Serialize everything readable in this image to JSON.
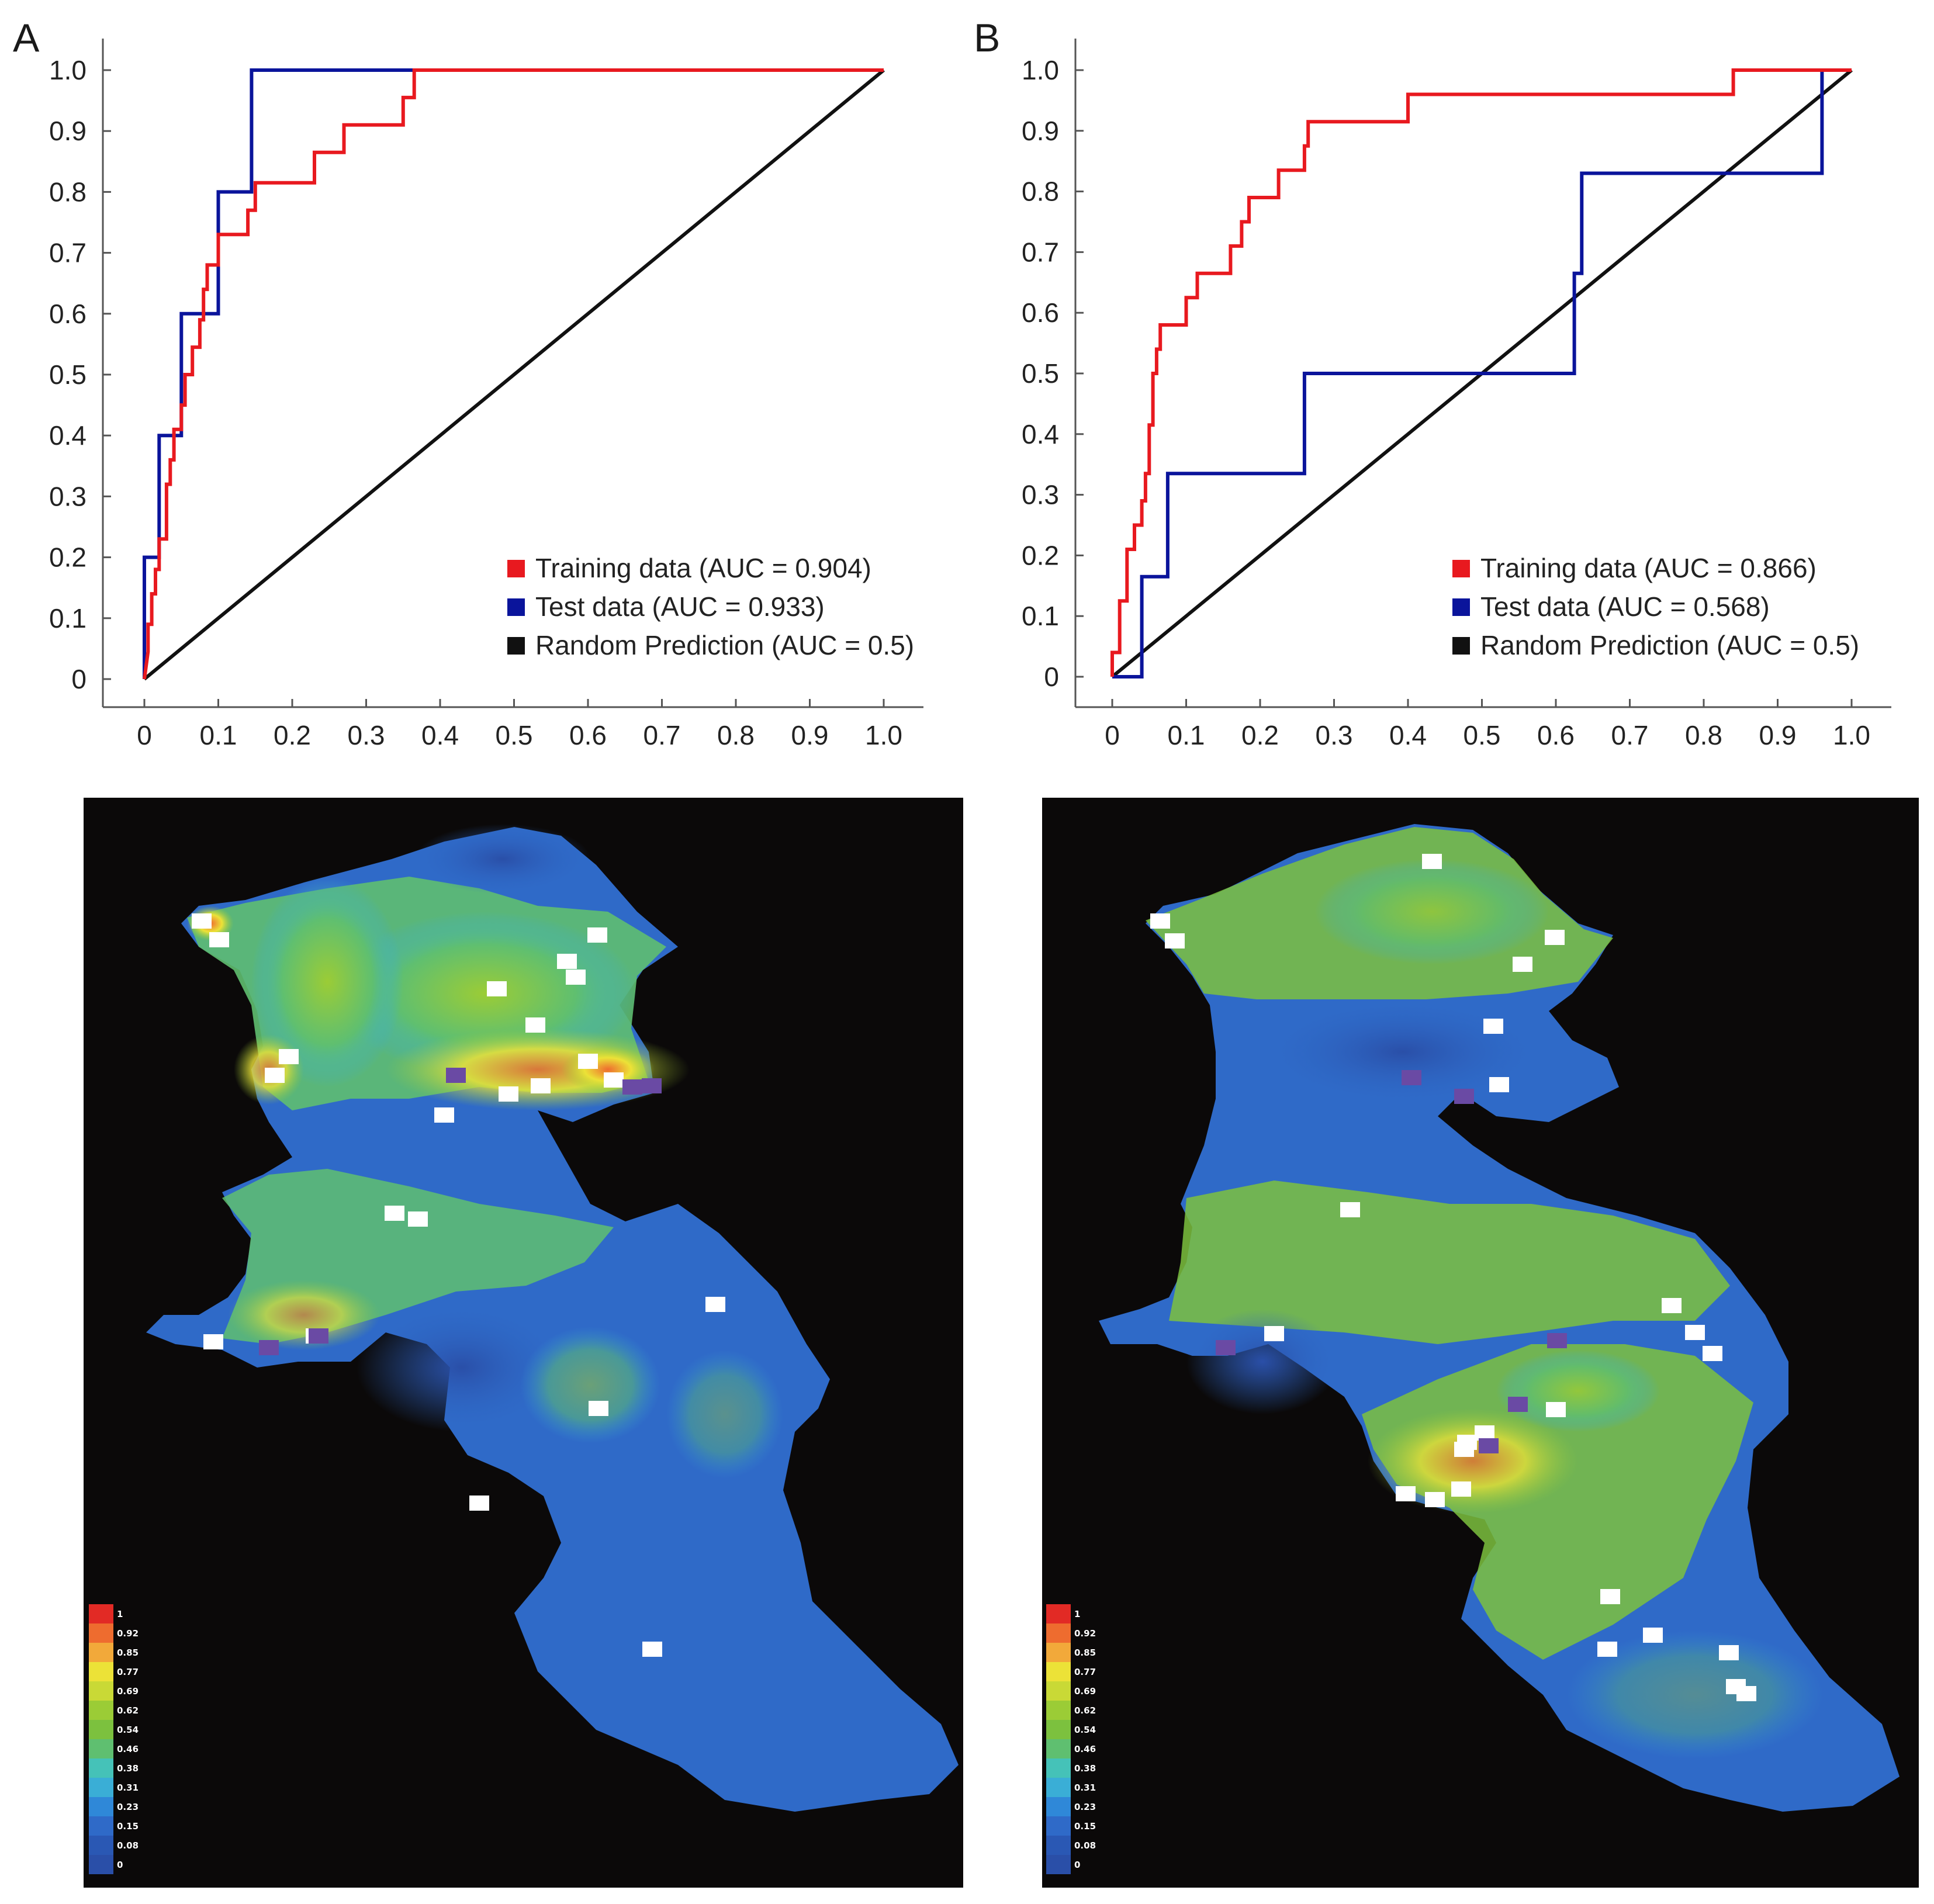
{
  "figure": {
    "map_colorscale": [
      "#2a4fa8",
      "#2f6ac8",
      "#2f88d8",
      "#3aaed6",
      "#45c2b8",
      "#5fbf70",
      "#7cc13e",
      "#9bcc36",
      "#c9d936",
      "#ece237",
      "#f2a93a",
      "#ee6c2f",
      "#e22a25"
    ],
    "map_background": "#0b0909"
  },
  "chart_data": [
    {
      "panel_label": "A",
      "type": "line",
      "title": "",
      "xlabel": "",
      "ylabel": "",
      "xlim": [
        0,
        1
      ],
      "ylim": [
        0,
        1
      ],
      "x_ticks": [
        "0",
        "0.1",
        "0.2",
        "0.3",
        "0.4",
        "0.5",
        "0.6",
        "0.7",
        "0.8",
        "0.9",
        "1.0"
      ],
      "y_ticks": [
        "0",
        "0.1",
        "0.2",
        "0.3",
        "0.4",
        "0.5",
        "0.6",
        "0.7",
        "0.8",
        "0.9",
        "1.0"
      ],
      "legend_position": "bottom-right",
      "series": [
        {
          "name": "Training data (AUC = 0.904)",
          "color": "#e8191f",
          "points": [
            [
              0,
              0
            ],
            [
              0.005,
              0.045
            ],
            [
              0.005,
              0.09
            ],
            [
              0.01,
              0.09
            ],
            [
              0.01,
              0.14
            ],
            [
              0.015,
              0.14
            ],
            [
              0.015,
              0.18
            ],
            [
              0.02,
              0.18
            ],
            [
              0.02,
              0.23
            ],
            [
              0.03,
              0.23
            ],
            [
              0.03,
              0.27
            ],
            [
              0.03,
              0.32
            ],
            [
              0.035,
              0.32
            ],
            [
              0.035,
              0.36
            ],
            [
              0.04,
              0.36
            ],
            [
              0.04,
              0.41
            ],
            [
              0.05,
              0.41
            ],
            [
              0.05,
              0.45
            ],
            [
              0.055,
              0.45
            ],
            [
              0.055,
              0.5
            ],
            [
              0.065,
              0.5
            ],
            [
              0.065,
              0.545
            ],
            [
              0.075,
              0.545
            ],
            [
              0.075,
              0.59
            ],
            [
              0.08,
              0.59
            ],
            [
              0.08,
              0.64
            ],
            [
              0.085,
              0.64
            ],
            [
              0.085,
              0.68
            ],
            [
              0.1,
              0.68
            ],
            [
              0.1,
              0.73
            ],
            [
              0.14,
              0.73
            ],
            [
              0.14,
              0.77
            ],
            [
              0.15,
              0.77
            ],
            [
              0.15,
              0.815
            ],
            [
              0.23,
              0.815
            ],
            [
              0.23,
              0.865
            ],
            [
              0.27,
              0.865
            ],
            [
              0.27,
              0.91
            ],
            [
              0.35,
              0.91
            ],
            [
              0.35,
              0.955
            ],
            [
              0.365,
              0.955
            ],
            [
              0.365,
              1.0
            ],
            [
              1.0,
              1.0
            ]
          ]
        },
        {
          "name": "Test data (AUC = 0.933)",
          "color": "#0a149b",
          "points": [
            [
              0,
              0
            ],
            [
              0,
              0.2
            ],
            [
              0.02,
              0.2
            ],
            [
              0.02,
              0.4
            ],
            [
              0.05,
              0.4
            ],
            [
              0.05,
              0.6
            ],
            [
              0.1,
              0.6
            ],
            [
              0.1,
              0.8
            ],
            [
              0.145,
              0.8
            ],
            [
              0.145,
              1.0
            ],
            [
              1.0,
              1.0
            ]
          ]
        },
        {
          "name": "Random Prediction (AUC = 0.5)",
          "color": "#111111",
          "points": [
            [
              0,
              0
            ],
            [
              1,
              1
            ]
          ]
        }
      ]
    },
    {
      "panel_label": "B",
      "type": "line",
      "title": "",
      "xlabel": "",
      "ylabel": "",
      "xlim": [
        0,
        1
      ],
      "ylim": [
        0,
        1
      ],
      "x_ticks": [
        "0",
        "0.1",
        "0.2",
        "0.3",
        "0.4",
        "0.5",
        "0.6",
        "0.7",
        "0.8",
        "0.9",
        "1.0"
      ],
      "y_ticks": [
        "0",
        "0.1",
        "0.2",
        "0.3",
        "0.4",
        "0.5",
        "0.6",
        "0.7",
        "0.8",
        "0.9",
        "1.0"
      ],
      "legend_position": "bottom-right",
      "series": [
        {
          "name": "Training data (AUC = 0.866)",
          "color": "#e8191f",
          "points": [
            [
              0,
              0
            ],
            [
              0,
              0.04
            ],
            [
              0.01,
              0.04
            ],
            [
              0.01,
              0.08
            ],
            [
              0.01,
              0.125
            ],
            [
              0.02,
              0.125
            ],
            [
              0.02,
              0.165
            ],
            [
              0.02,
              0.21
            ],
            [
              0.03,
              0.21
            ],
            [
              0.03,
              0.25
            ],
            [
              0.04,
              0.25
            ],
            [
              0.04,
              0.29
            ],
            [
              0.045,
              0.29
            ],
            [
              0.045,
              0.335
            ],
            [
              0.05,
              0.335
            ],
            [
              0.05,
              0.375
            ],
            [
              0.05,
              0.415
            ],
            [
              0.055,
              0.415
            ],
            [
              0.055,
              0.46
            ],
            [
              0.055,
              0.5
            ],
            [
              0.06,
              0.5
            ],
            [
              0.06,
              0.54
            ],
            [
              0.065,
              0.54
            ],
            [
              0.065,
              0.58
            ],
            [
              0.1,
              0.58
            ],
            [
              0.1,
              0.625
            ],
            [
              0.115,
              0.625
            ],
            [
              0.115,
              0.665
            ],
            [
              0.16,
              0.665
            ],
            [
              0.16,
              0.71
            ],
            [
              0.175,
              0.71
            ],
            [
              0.175,
              0.75
            ],
            [
              0.185,
              0.75
            ],
            [
              0.185,
              0.79
            ],
            [
              0.225,
              0.79
            ],
            [
              0.225,
              0.835
            ],
            [
              0.26,
              0.835
            ],
            [
              0.26,
              0.875
            ],
            [
              0.265,
              0.875
            ],
            [
              0.265,
              0.915
            ],
            [
              0.4,
              0.915
            ],
            [
              0.4,
              0.96
            ],
            [
              0.84,
              0.96
            ],
            [
              0.84,
              1.0
            ],
            [
              1.0,
              1.0
            ]
          ]
        },
        {
          "name": "Test data (AUC = 0.568)",
          "color": "#0a149b",
          "points": [
            [
              0,
              0
            ],
            [
              0.04,
              0
            ],
            [
              0.04,
              0.165
            ],
            [
              0.075,
              0.165
            ],
            [
              0.075,
              0.335
            ],
            [
              0.26,
              0.335
            ],
            [
              0.26,
              0.5
            ],
            [
              0.625,
              0.5
            ],
            [
              0.625,
              0.665
            ],
            [
              0.635,
              0.665
            ],
            [
              0.635,
              0.83
            ],
            [
              0.96,
              0.83
            ],
            [
              0.96,
              1.0
            ]
          ]
        },
        {
          "name": "Random Prediction (AUC = 0.5)",
          "color": "#111111",
          "points": [
            [
              0,
              0
            ],
            [
              1,
              1
            ]
          ]
        }
      ]
    }
  ],
  "maps": [
    {
      "panel": "A",
      "colorbar_labels": [
        "1",
        "0.92",
        "0.85",
        "0.77",
        "0.69",
        "0.62",
        "0.54",
        "0.46",
        "0.38",
        "0.31",
        "0.23",
        "0.15",
        "0.08",
        "0"
      ]
    },
    {
      "panel": "B",
      "colorbar_labels": [
        "1",
        "0.92",
        "0.85",
        "0.77",
        "0.69",
        "0.62",
        "0.54",
        "0.46",
        "0.38",
        "0.31",
        "0.23",
        "0.15",
        "0.08",
        "0"
      ]
    }
  ]
}
